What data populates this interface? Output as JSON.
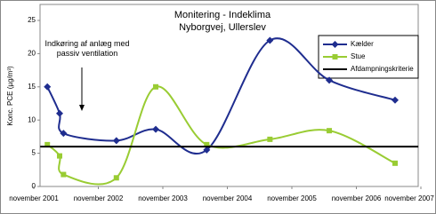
{
  "chart_data": {
    "type": "line",
    "title": "Monitering - Indeklima",
    "subtitle": "Nyborgvej, Ullerslev",
    "y_label": "Konc. PCE (µg/m³)",
    "annotation": "Indkøring af anlæg med passiv ventilation",
    "xlim": [
      0,
      6
    ],
    "xticks": [
      {
        "value": 0,
        "label": "november 2001"
      },
      {
        "value": 1,
        "label": "november 2002"
      },
      {
        "value": 2,
        "label": "november 2003"
      },
      {
        "value": 3,
        "label": "november 2004"
      },
      {
        "value": 4,
        "label": "november 2005"
      },
      {
        "value": 5,
        "label": "november 2006"
      },
      {
        "value": 6,
        "label": "november 2007"
      }
    ],
    "ylim": [
      0,
      25
    ],
    "yticks": [
      0,
      5,
      10,
      15,
      20,
      25
    ],
    "series": [
      {
        "name": "Kælder",
        "color": "#1f2d8f",
        "marker": "diamond",
        "x": [
          0.21,
          0.4,
          0.46,
          1.28,
          1.89,
          2.68,
          3.66,
          4.58,
          5.6
        ],
        "values": [
          15,
          11,
          8,
          6.9,
          8.6,
          5.5,
          22,
          16,
          13
        ]
      },
      {
        "name": "Stue",
        "color": "#99cc33",
        "marker": "square",
        "x": [
          0.21,
          0.4,
          0.46,
          1.28,
          1.89,
          2.68,
          3.66,
          4.58,
          5.6
        ],
        "values": [
          6.3,
          4.6,
          1.8,
          1.3,
          15,
          6.3,
          7.1,
          8.4,
          3.5
        ]
      },
      {
        "name": "Afdampningskriterie",
        "color": "#000000",
        "marker": "none",
        "x": [
          0.1,
          5.96
        ],
        "values": [
          6,
          6
        ]
      }
    ]
  }
}
